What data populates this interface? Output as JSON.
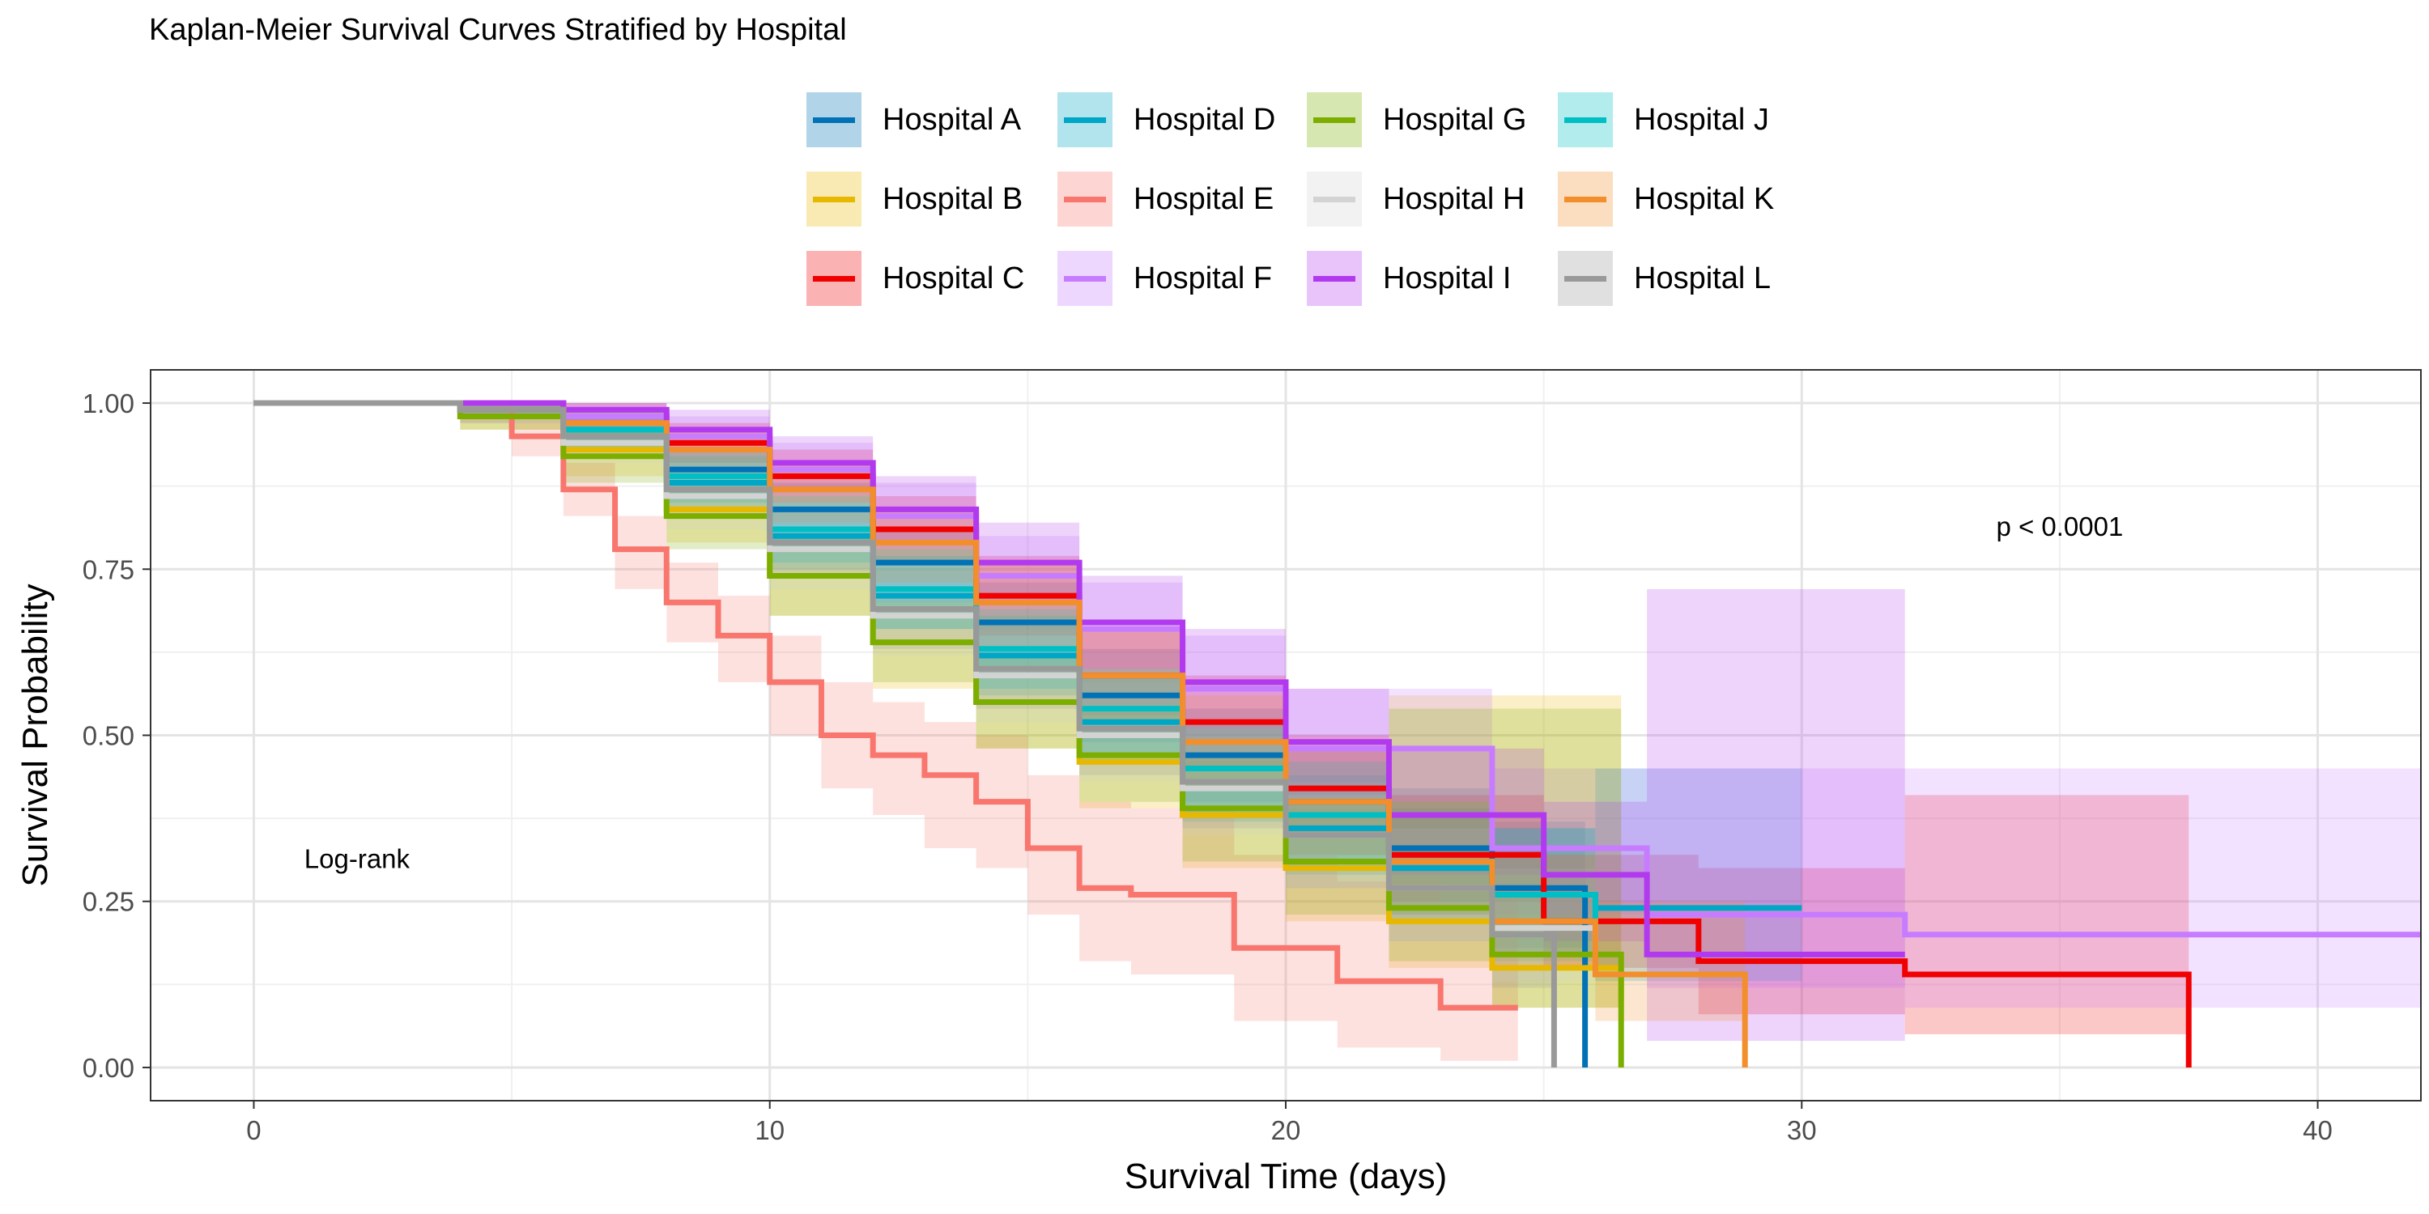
{
  "chart_data": {
    "type": "line",
    "title": "Kaplan-Meier Survival Curves Stratified by Hospital",
    "xlabel": "Survival Time (days)",
    "ylabel": "Survival Probability",
    "xlim": [
      -2,
      42
    ],
    "ylim": [
      -0.05,
      1.05
    ],
    "x_ticks": [
      0,
      10,
      20,
      30,
      40
    ],
    "y_ticks": [
      0.0,
      0.25,
      0.5,
      0.75,
      1.0
    ],
    "x_tick_labels": [
      "0",
      "10",
      "20",
      "30",
      "40"
    ],
    "y_tick_labels": [
      "0.00",
      "0.25",
      "0.50",
      "0.75",
      "1.00"
    ],
    "grid": true,
    "legend_position": "top",
    "annotations": [
      {
        "text": "Log-rank",
        "x": 2,
        "y": 0.3
      },
      {
        "text": "p < 0.0001",
        "x": 35,
        "y": 0.8
      }
    ],
    "series": [
      {
        "name": "Hospital A",
        "color": "#0072B5",
        "x": [
          0,
          4,
          6,
          8,
          10,
          12,
          14,
          16,
          18,
          20,
          22,
          24,
          25.8
        ],
        "y": [
          1.0,
          0.99,
          0.96,
          0.9,
          0.84,
          0.76,
          0.67,
          0.56,
          0.47,
          0.4,
          0.33,
          0.27,
          0.0
        ]
      },
      {
        "name": "Hospital B",
        "color": "#E7B800",
        "x": [
          0,
          4,
          6,
          8,
          10,
          12,
          14,
          16,
          18,
          20,
          22,
          24,
          26.5
        ],
        "y": [
          1.0,
          0.98,
          0.93,
          0.84,
          0.74,
          0.64,
          0.55,
          0.46,
          0.38,
          0.3,
          0.22,
          0.15,
          0.1
        ]
      },
      {
        "name": "Hospital C",
        "color": "#F00000",
        "x": [
          0,
          4,
          6,
          8,
          10,
          12,
          14,
          16,
          18,
          20,
          22,
          25,
          28,
          32,
          37.5
        ],
        "y": [
          1.0,
          1.0,
          0.98,
          0.94,
          0.89,
          0.81,
          0.71,
          0.59,
          0.52,
          0.42,
          0.32,
          0.22,
          0.16,
          0.14,
          0.0
        ]
      },
      {
        "name": "Hospital D",
        "color": "#00A6C6",
        "x": [
          0,
          4,
          6,
          8,
          10,
          12,
          14,
          16,
          18,
          20,
          22,
          24,
          26,
          30
        ],
        "y": [
          1.0,
          0.99,
          0.95,
          0.88,
          0.8,
          0.71,
          0.62,
          0.52,
          0.43,
          0.36,
          0.3,
          0.26,
          0.24,
          0.24
        ]
      },
      {
        "name": "Hospital E",
        "color": "#F8766D",
        "x": [
          0,
          4,
          5,
          6,
          7,
          8,
          9,
          10,
          11,
          12,
          13,
          14,
          15,
          16,
          17,
          19,
          21,
          23,
          24.5
        ],
        "y": [
          1.0,
          0.99,
          0.95,
          0.87,
          0.78,
          0.7,
          0.65,
          0.58,
          0.5,
          0.47,
          0.44,
          0.4,
          0.33,
          0.27,
          0.26,
          0.18,
          0.13,
          0.09,
          0.09
        ]
      },
      {
        "name": "Hospital F",
        "color": "#C77CFF",
        "x": [
          0,
          4,
          6,
          8,
          10,
          12,
          14,
          16,
          18,
          20,
          24,
          27,
          32,
          42
        ],
        "y": [
          1.0,
          1.0,
          0.98,
          0.95,
          0.9,
          0.83,
          0.74,
          0.66,
          0.57,
          0.48,
          0.33,
          0.23,
          0.2,
          0.2
        ]
      },
      {
        "name": "Hospital G",
        "color": "#7CAE00",
        "x": [
          0,
          4,
          6,
          8,
          10,
          12,
          14,
          16,
          18,
          20,
          22,
          24,
          26.5
        ],
        "y": [
          1.0,
          0.98,
          0.92,
          0.83,
          0.74,
          0.64,
          0.55,
          0.47,
          0.39,
          0.31,
          0.24,
          0.17,
          0.0
        ]
      },
      {
        "name": "Hospital H",
        "color": "#D3D3D3",
        "x": [
          0,
          4,
          6,
          8,
          10,
          12,
          14,
          16,
          18,
          20,
          22,
          24,
          26
        ],
        "y": [
          1.0,
          0.99,
          0.94,
          0.86,
          0.78,
          0.68,
          0.59,
          0.5,
          0.42,
          0.35,
          0.27,
          0.21,
          0.18
        ]
      },
      {
        "name": "Hospital I",
        "color": "#B23AEE",
        "x": [
          0,
          4,
          6,
          8,
          10,
          12,
          14,
          16,
          18,
          20,
          22,
          25,
          27,
          32
        ],
        "y": [
          1.0,
          1.0,
          0.99,
          0.96,
          0.91,
          0.84,
          0.76,
          0.67,
          0.58,
          0.49,
          0.38,
          0.29,
          0.17,
          0.17
        ]
      },
      {
        "name": "Hospital J",
        "color": "#00BFC4",
        "x": [
          0,
          4,
          6,
          8,
          10,
          12,
          14,
          16,
          18,
          20,
          22,
          24,
          26
        ],
        "y": [
          1.0,
          0.99,
          0.96,
          0.89,
          0.81,
          0.72,
          0.63,
          0.54,
          0.45,
          0.38,
          0.31,
          0.26,
          0.22
        ]
      },
      {
        "name": "Hospital K",
        "color": "#F28E2B",
        "x": [
          0,
          4,
          6,
          8,
          10,
          12,
          14,
          16,
          18,
          20,
          22,
          24,
          26,
          28.9
        ],
        "y": [
          1.0,
          0.99,
          0.97,
          0.93,
          0.87,
          0.79,
          0.7,
          0.59,
          0.49,
          0.4,
          0.31,
          0.22,
          0.14,
          0.0
        ]
      },
      {
        "name": "Hospital L",
        "color": "#999999",
        "x": [
          0,
          4,
          6,
          8,
          10,
          12,
          14,
          16,
          18,
          20,
          22,
          24,
          25.2
        ],
        "y": [
          1.0,
          0.99,
          0.95,
          0.87,
          0.79,
          0.69,
          0.6,
          0.51,
          0.43,
          0.35,
          0.27,
          0.2,
          0.0
        ]
      }
    ],
    "confidence_bands": [
      {
        "series": "Hospital A",
        "x": [
          0,
          4,
          6,
          8,
          10,
          12,
          14,
          16,
          18,
          20,
          22,
          24,
          25.8
        ],
        "lower": [
          1.0,
          0.98,
          0.94,
          0.86,
          0.79,
          0.7,
          0.6,
          0.49,
          0.4,
          0.32,
          0.25,
          0.18,
          0.12
        ],
        "upper": [
          1.0,
          1.0,
          0.98,
          0.93,
          0.88,
          0.81,
          0.73,
          0.63,
          0.54,
          0.48,
          0.42,
          0.37,
          0.44
        ]
      },
      {
        "series": "Hospital B",
        "x": [
          0,
          4,
          6,
          8,
          10,
          12,
          14,
          16,
          18,
          20,
          22,
          24,
          26.5
        ],
        "lower": [
          1.0,
          0.96,
          0.89,
          0.79,
          0.68,
          0.57,
          0.48,
          0.39,
          0.3,
          0.22,
          0.15,
          0.09,
          0.04
        ],
        "upper": [
          1.0,
          1.0,
          0.96,
          0.89,
          0.8,
          0.71,
          0.62,
          0.53,
          0.46,
          0.39,
          0.56,
          0.56,
          0.56
        ]
      },
      {
        "series": "Hospital C",
        "x": [
          0,
          4,
          6,
          8,
          10,
          12,
          14,
          16,
          18,
          20,
          22,
          25,
          28,
          32,
          37.5
        ],
        "lower": [
          1.0,
          1.0,
          0.96,
          0.91,
          0.85,
          0.76,
          0.65,
          0.53,
          0.45,
          0.35,
          0.25,
          0.15,
          0.08,
          0.05,
          0.05
        ],
        "upper": [
          1.0,
          1.0,
          1.0,
          0.97,
          0.93,
          0.86,
          0.77,
          0.66,
          0.59,
          0.5,
          0.41,
          0.32,
          0.3,
          0.41,
          0.41
        ]
      },
      {
        "series": "Hospital D",
        "x": [
          0,
          4,
          6,
          8,
          10,
          12,
          14,
          16,
          18,
          20,
          22,
          24,
          26,
          30
        ],
        "lower": [
          1.0,
          0.98,
          0.93,
          0.84,
          0.75,
          0.66,
          0.56,
          0.46,
          0.37,
          0.29,
          0.22,
          0.16,
          0.13,
          0.12
        ],
        "upper": [
          1.0,
          1.0,
          0.98,
          0.92,
          0.85,
          0.77,
          0.68,
          0.59,
          0.51,
          0.44,
          0.39,
          0.36,
          0.45,
          0.45
        ]
      },
      {
        "series": "Hospital E",
        "x": [
          0,
          4,
          5,
          6,
          7,
          8,
          9,
          10,
          11,
          12,
          13,
          14,
          15,
          16,
          17,
          19,
          21,
          23,
          24.5
        ],
        "lower": [
          1.0,
          0.97,
          0.92,
          0.83,
          0.72,
          0.64,
          0.58,
          0.5,
          0.42,
          0.38,
          0.33,
          0.3,
          0.23,
          0.16,
          0.14,
          0.07,
          0.03,
          0.01,
          0.01
        ],
        "upper": [
          1.0,
          1.0,
          0.98,
          0.91,
          0.83,
          0.76,
          0.71,
          0.65,
          0.58,
          0.55,
          0.52,
          0.5,
          0.44,
          0.4,
          0.39,
          0.32,
          0.28,
          0.25,
          0.25
        ]
      },
      {
        "series": "Hospital F",
        "x": [
          0,
          4,
          6,
          8,
          10,
          12,
          14,
          16,
          18,
          20,
          24,
          27,
          32,
          42
        ],
        "lower": [
          1.0,
          1.0,
          0.96,
          0.92,
          0.86,
          0.78,
          0.68,
          0.59,
          0.49,
          0.4,
          0.23,
          0.12,
          0.09,
          0.09
        ],
        "upper": [
          1.0,
          1.0,
          1.0,
          0.98,
          0.94,
          0.88,
          0.8,
          0.73,
          0.65,
          0.57,
          0.45,
          0.45,
          0.45,
          0.45
        ]
      },
      {
        "series": "Hospital G",
        "x": [
          0,
          4,
          6,
          8,
          10,
          12,
          14,
          16,
          18,
          20,
          22,
          24,
          26.5
        ],
        "lower": [
          1.0,
          0.96,
          0.88,
          0.78,
          0.68,
          0.58,
          0.48,
          0.4,
          0.31,
          0.23,
          0.16,
          0.09,
          0.05
        ],
        "upper": [
          1.0,
          1.0,
          0.96,
          0.88,
          0.8,
          0.7,
          0.62,
          0.54,
          0.47,
          0.4,
          0.54,
          0.54,
          0.54
        ]
      },
      {
        "series": "Hospital H",
        "x": [
          0,
          4,
          6,
          8,
          10,
          12,
          14,
          16,
          18,
          20,
          22,
          24,
          26
        ],
        "lower": [
          1.0,
          0.97,
          0.91,
          0.81,
          0.72,
          0.62,
          0.52,
          0.43,
          0.35,
          0.27,
          0.19,
          0.13,
          0.1
        ],
        "upper": [
          1.0,
          1.0,
          0.97,
          0.91,
          0.84,
          0.75,
          0.66,
          0.58,
          0.5,
          0.43,
          0.36,
          0.3,
          0.28
        ]
      },
      {
        "series": "Hospital I",
        "x": [
          0,
          4,
          6,
          8,
          10,
          12,
          14,
          16,
          18,
          20,
          22,
          25,
          27,
          32
        ],
        "lower": [
          1.0,
          1.0,
          0.97,
          0.93,
          0.87,
          0.79,
          0.7,
          0.6,
          0.51,
          0.41,
          0.29,
          0.19,
          0.04,
          0.04
        ],
        "upper": [
          1.0,
          1.0,
          1.0,
          0.99,
          0.95,
          0.89,
          0.82,
          0.74,
          0.66,
          0.57,
          0.48,
          0.4,
          0.72,
          0.72
        ]
      },
      {
        "series": "Hospital J",
        "x": [
          0,
          4,
          6,
          8,
          10,
          12,
          14,
          16,
          18,
          20,
          22,
          24,
          26
        ],
        "lower": [
          1.0,
          0.98,
          0.93,
          0.85,
          0.76,
          0.66,
          0.57,
          0.47,
          0.38,
          0.3,
          0.23,
          0.17,
          0.13
        ],
        "upper": [
          1.0,
          1.0,
          0.99,
          0.93,
          0.86,
          0.78,
          0.69,
          0.6,
          0.52,
          0.46,
          0.4,
          0.36,
          0.33
        ]
      },
      {
        "series": "Hospital K",
        "x": [
          0,
          4,
          6,
          8,
          10,
          12,
          14,
          16,
          18,
          20,
          22,
          24,
          26,
          28.9
        ],
        "lower": [
          1.0,
          0.98,
          0.95,
          0.89,
          0.82,
          0.73,
          0.63,
          0.52,
          0.42,
          0.32,
          0.23,
          0.15,
          0.07,
          0.05
        ],
        "upper": [
          1.0,
          1.0,
          0.99,
          0.96,
          0.91,
          0.84,
          0.76,
          0.66,
          0.56,
          0.48,
          0.4,
          0.32,
          0.25,
          0.25
        ]
      },
      {
        "series": "Hospital L",
        "x": [
          0,
          4,
          6,
          8,
          10,
          12,
          14,
          16,
          18,
          20,
          22,
          24,
          25.2
        ],
        "lower": [
          1.0,
          0.97,
          0.92,
          0.83,
          0.74,
          0.63,
          0.54,
          0.44,
          0.36,
          0.27,
          0.19,
          0.12,
          0.08
        ],
        "upper": [
          1.0,
          1.0,
          0.98,
          0.91,
          0.84,
          0.75,
          0.66,
          0.58,
          0.5,
          0.43,
          0.36,
          0.29,
          0.27
        ]
      }
    ]
  }
}
